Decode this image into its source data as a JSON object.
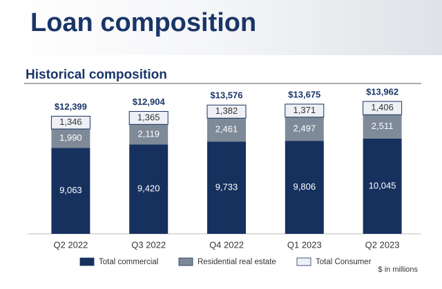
{
  "header": {
    "title": "Loan composition"
  },
  "chart_data": {
    "type": "stacked-bar",
    "title": "Historical composition",
    "note": "$ in millions",
    "categories": [
      "Q2 2022",
      "Q3 2022",
      "Q4 2022",
      "Q1 2023",
      "Q2 2023"
    ],
    "series": [
      {
        "name": "Total commercial",
        "color": "#17315f",
        "label_color": "#ffffff",
        "values": [
          9063,
          9420,
          9733,
          9806,
          10045
        ],
        "value_labels": [
          "9,063",
          "9,420",
          "9,733",
          "9,806",
          "10,045"
        ]
      },
      {
        "name": "Residential real estate",
        "color": "#7f8a99",
        "label_color": "#ffffff",
        "values": [
          1990,
          2119,
          2461,
          2497,
          2511
        ],
        "value_labels": [
          "1,990",
          "2,119",
          "2,461",
          "2,497",
          "2,511"
        ]
      },
      {
        "name": "Total Consumer",
        "color": "#eef0f5",
        "label_color": "#333333",
        "values": [
          1346,
          1365,
          1382,
          1371,
          1406
        ],
        "value_labels": [
          "1,346",
          "1,365",
          "1,382",
          "1,371",
          "1,406"
        ]
      }
    ],
    "totals": [
      12399,
      12904,
      13576,
      13675,
      13962
    ],
    "total_labels": [
      "$12,399",
      "$12,904",
      "$13,576",
      "$13,675",
      "$13,962"
    ]
  }
}
